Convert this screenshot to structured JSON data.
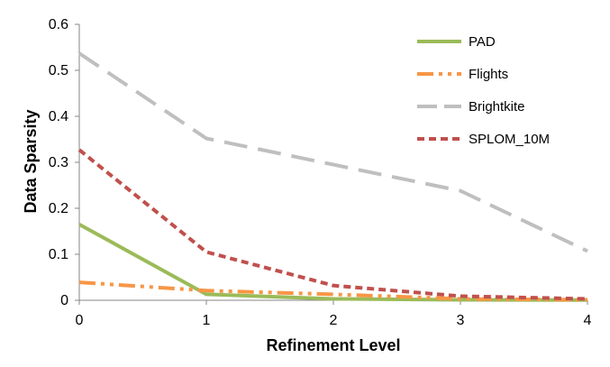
{
  "chart_data": {
    "type": "line",
    "title": "",
    "xlabel": "Refinement Level",
    "ylabel": "Data Sparsity",
    "x": [
      0,
      1,
      2,
      3,
      4
    ],
    "xlim": [
      0,
      4
    ],
    "ylim": [
      0,
      0.6
    ],
    "x_ticks": [
      "0",
      "1",
      "2",
      "3",
      "4"
    ],
    "y_ticks": [
      "0",
      "0.1",
      "0.2",
      "0.3",
      "0.4",
      "0.5",
      "0.6"
    ],
    "grid": false,
    "legend_position": "top-right",
    "series": [
      {
        "name": "PAD",
        "values": [
          0.165,
          0.013,
          0.003,
          0.001,
          0.0005
        ],
        "color": "#9bbb59",
        "dash": "solid"
      },
      {
        "name": "Flights",
        "values": [
          0.039,
          0.021,
          0.013,
          0.003,
          0.001
        ],
        "color": "#f79646",
        "dash": "dashdotdot"
      },
      {
        "name": "Brightkite",
        "values": [
          0.537,
          0.352,
          0.295,
          0.238,
          0.107
        ],
        "color": "#bfbfbf",
        "dash": "longdash"
      },
      {
        "name": "SPLOM_10M",
        "values": [
          0.327,
          0.105,
          0.032,
          0.009,
          0.003
        ],
        "color": "#c0504d",
        "dash": "dash"
      }
    ]
  }
}
